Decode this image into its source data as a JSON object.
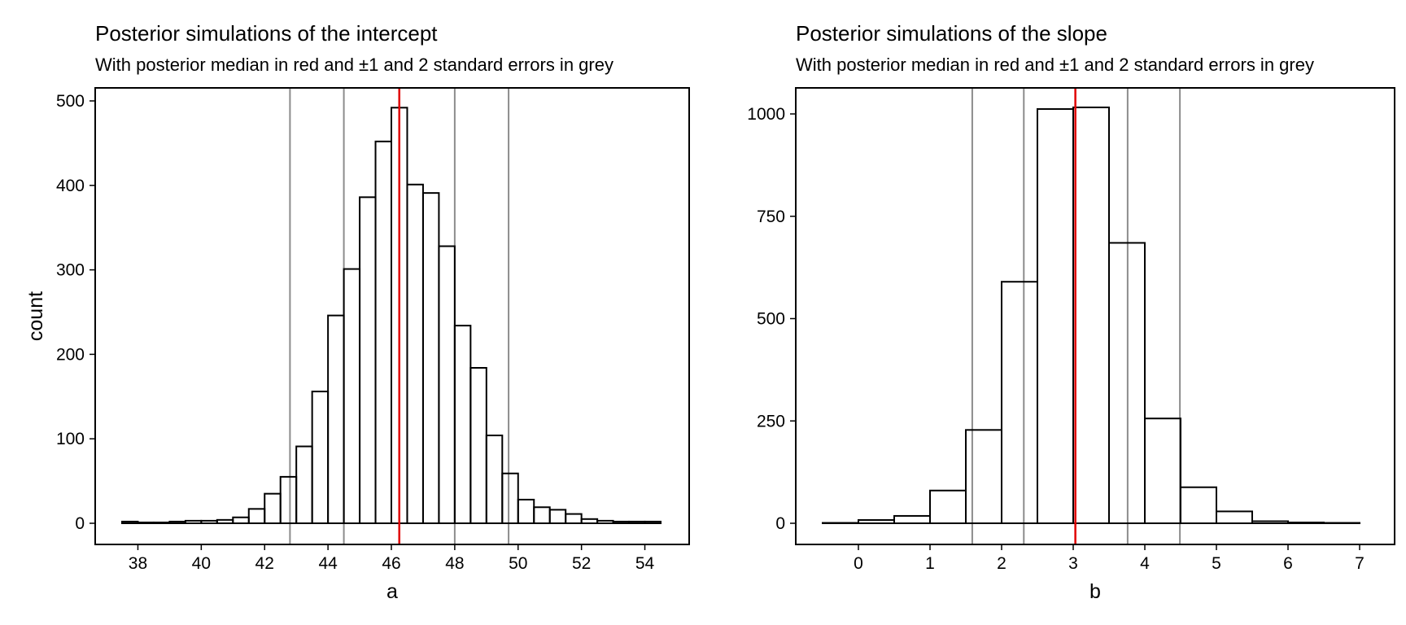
{
  "chart_data": [
    {
      "type": "bar",
      "title": "Posterior simulations of the intercept",
      "subtitle": "With posterior median in red and ±1 and 2 standard errors in grey",
      "xlabel": "a",
      "ylabel": "count",
      "xlim": [
        37.5,
        54.5
      ],
      "ylim": [
        0,
        500
      ],
      "xticks": [
        38,
        40,
        42,
        44,
        46,
        48,
        50,
        52,
        54
      ],
      "yticks": [
        0,
        100,
        200,
        300,
        400,
        500
      ],
      "bin_width": 0.5,
      "bin_starts": [
        37.5,
        38.0,
        38.5,
        39.0,
        39.5,
        40.0,
        40.5,
        41.0,
        41.5,
        42.0,
        42.5,
        43.0,
        43.5,
        44.0,
        44.5,
        45.0,
        45.5,
        46.0,
        46.5,
        47.0,
        47.5,
        48.0,
        48.5,
        49.0,
        49.5,
        50.0,
        50.5,
        51.0,
        51.5,
        52.0,
        52.5,
        53.0,
        53.5,
        54.0
      ],
      "values": [
        2,
        1,
        1,
        2,
        3,
        3,
        4,
        7,
        17,
        35,
        55,
        91,
        156,
        246,
        301,
        386,
        452,
        492,
        401,
        391,
        328,
        234,
        184,
        104,
        59,
        28,
        19,
        16,
        11,
        5,
        3,
        2,
        2,
        2
      ],
      "median": 46.25,
      "se_lines": [
        42.8,
        44.5,
        48.0,
        49.7
      ],
      "median_color": "#e00000",
      "se_color": "#8c8c8c",
      "grid": false
    },
    {
      "type": "bar",
      "title": "Posterior simulations of the slope",
      "subtitle": "With posterior median in red and ±1 and 2 standard errors in grey",
      "xlabel": "b",
      "ylabel": "",
      "xlim": [
        -0.5,
        7.0
      ],
      "ylim": [
        0,
        1000
      ],
      "xticks": [
        0,
        1,
        2,
        3,
        4,
        5,
        6,
        7
      ],
      "yticks": [
        0,
        250,
        500,
        750,
        1000
      ],
      "bin_width": 0.5,
      "bin_starts": [
        -0.5,
        0.0,
        0.5,
        1.0,
        1.5,
        2.0,
        2.5,
        3.0,
        3.5,
        4.0,
        4.5,
        5.0,
        5.5,
        6.0,
        6.5
      ],
      "values": [
        1,
        8,
        18,
        80,
        228,
        590,
        1012,
        1016,
        685,
        256,
        88,
        29,
        5,
        2,
        1
      ],
      "median": 3.03,
      "se_lines": [
        1.59,
        2.31,
        3.76,
        4.49
      ],
      "median_color": "#e00000",
      "se_color": "#8c8c8c",
      "grid": false
    }
  ]
}
